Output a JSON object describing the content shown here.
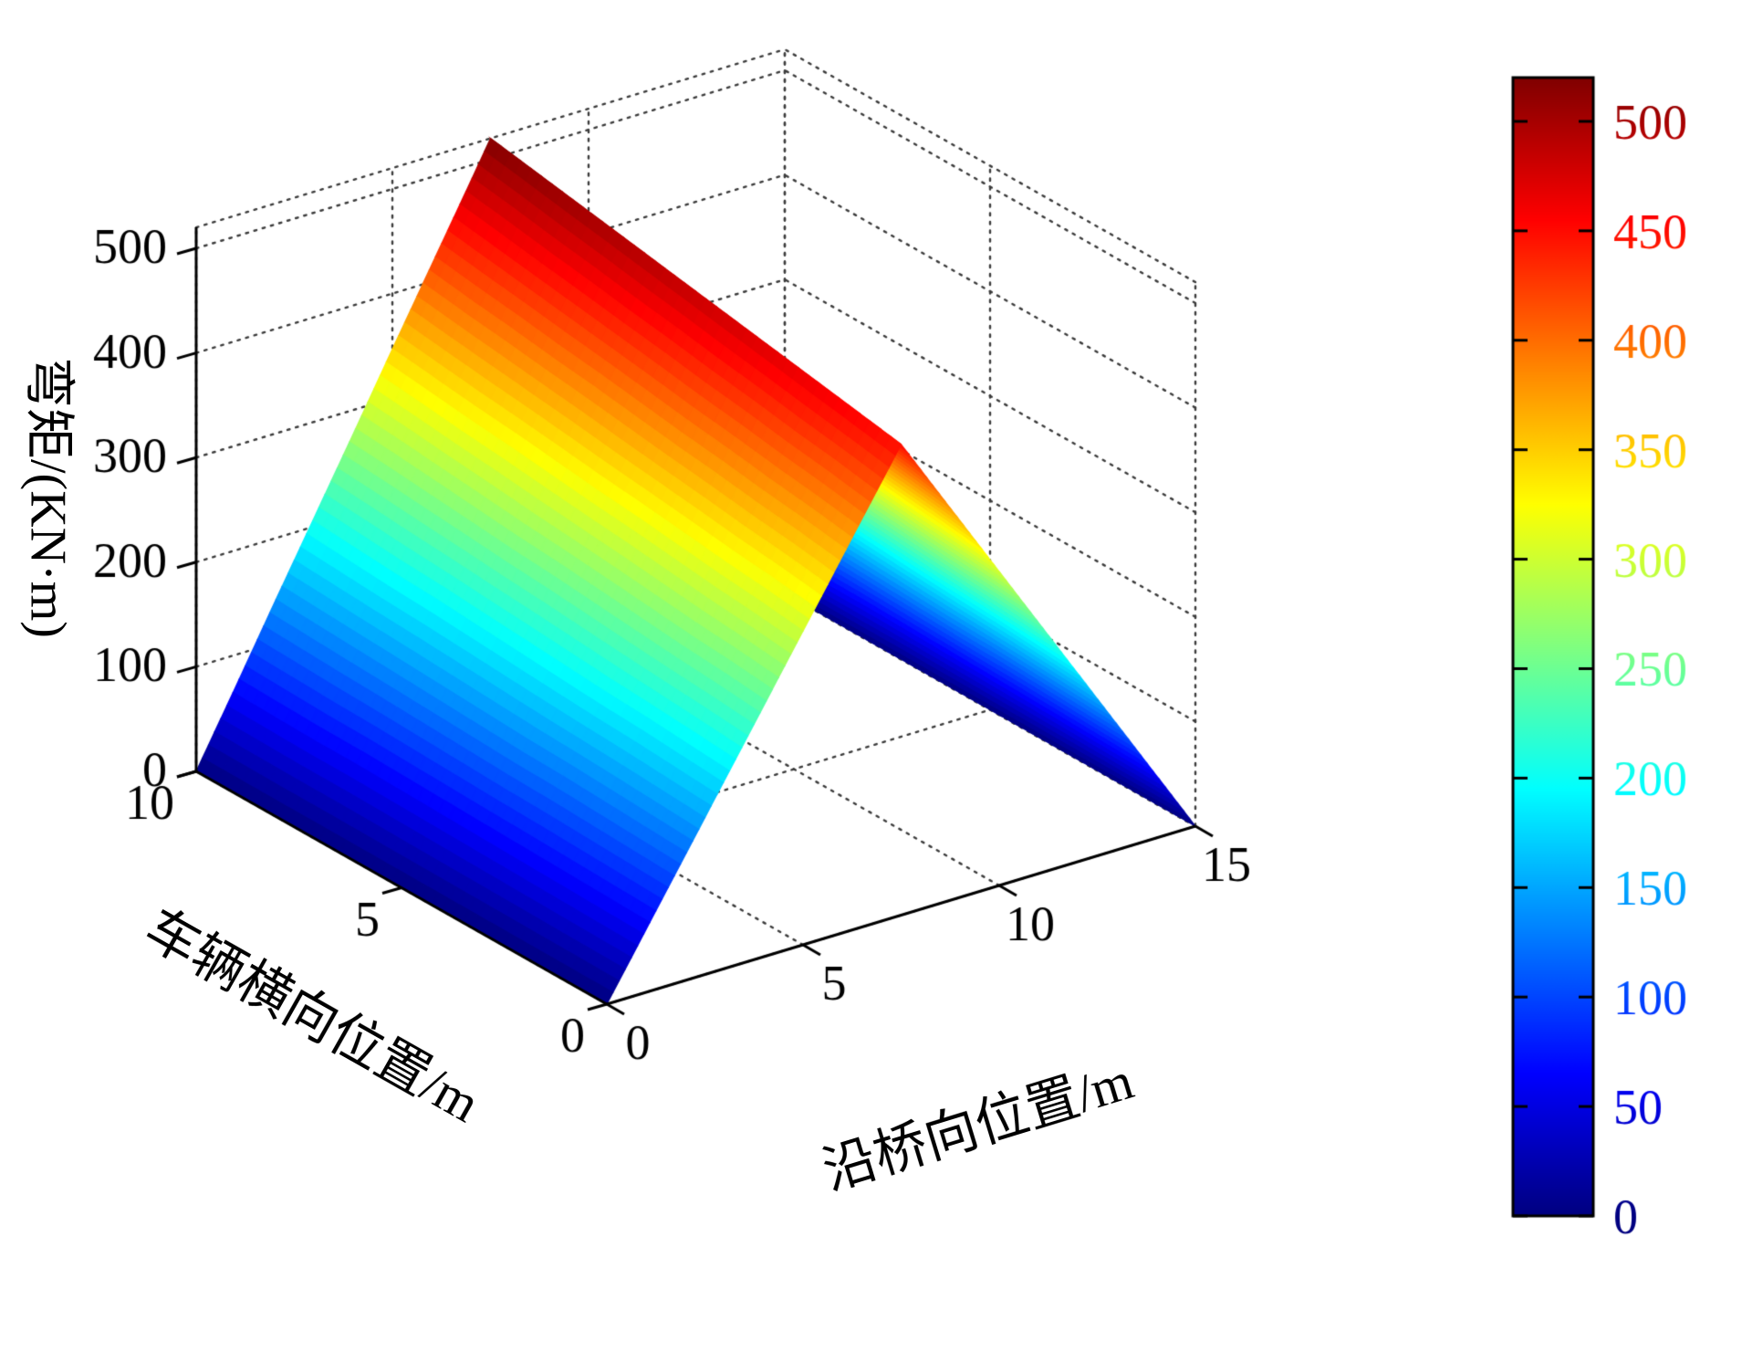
{
  "figure": {
    "background": "#ffffff",
    "grid_color": "#3c3c3c"
  },
  "chart_data": {
    "type": "surface",
    "title": "",
    "xlabel": "沿桥向位置/m",
    "ylabel": "车辆横向位置/m",
    "zlabel": "弯矩/(KN·m)",
    "xlim": [
      0,
      15
    ],
    "ylim": [
      0,
      10
    ],
    "zlim": [
      0,
      520
    ],
    "x_ticks": [
      0,
      5,
      10,
      15
    ],
    "y_ticks": [
      0,
      5,
      10
    ],
    "z_ticks": [
      0,
      100,
      200,
      300,
      400,
      500
    ],
    "grid": "dotted",
    "colormap": "jet",
    "colorbar": {
      "min": 0,
      "max": 520,
      "ticks": [
        0,
        50,
        100,
        150,
        200,
        250,
        300,
        350,
        400,
        450,
        500
      ],
      "position": "right"
    },
    "x": [
      0,
      1,
      2,
      3,
      4,
      5,
      6,
      7,
      7.5,
      8,
      9,
      10,
      11,
      12,
      13,
      14,
      15
    ],
    "y": [
      0,
      1,
      2,
      3,
      4,
      5,
      6,
      7,
      8,
      9,
      10
    ],
    "z": [
      [
        0,
        60,
        120,
        180,
        240,
        300,
        360,
        420,
        450,
        420,
        360,
        300,
        240,
        180,
        120,
        60,
        0
      ],
      [
        0,
        61,
        122,
        183,
        244,
        305,
        366,
        427,
        457,
        427,
        366,
        305,
        244,
        183,
        122,
        61,
        0
      ],
      [
        0,
        62,
        124,
        186,
        247,
        309,
        371,
        433,
        464,
        433,
        371,
        309,
        247,
        186,
        124,
        62,
        0
      ],
      [
        0,
        63,
        126,
        188,
        251,
        314,
        377,
        440,
        471,
        440,
        377,
        314,
        251,
        188,
        126,
        63,
        0
      ],
      [
        0,
        64,
        127,
        191,
        255,
        319,
        382,
        446,
        478,
        446,
        382,
        319,
        255,
        191,
        127,
        64,
        0
      ],
      [
        0,
        65,
        129,
        194,
        259,
        323,
        388,
        453,
        485,
        453,
        388,
        323,
        259,
        194,
        129,
        65,
        0
      ],
      [
        0,
        66,
        131,
        197,
        262,
        328,
        394,
        459,
        492,
        459,
        394,
        328,
        262,
        197,
        131,
        66,
        0
      ],
      [
        0,
        67,
        133,
        200,
        266,
        333,
        399,
        466,
        499,
        466,
        399,
        333,
        266,
        200,
        133,
        67,
        0
      ],
      [
        0,
        67,
        135,
        202,
        270,
        337,
        405,
        472,
        506,
        472,
        405,
        337,
        270,
        202,
        135,
        67,
        0
      ],
      [
        0,
        68,
        137,
        205,
        274,
        342,
        410,
        479,
        513,
        479,
        410,
        342,
        274,
        205,
        137,
        68,
        0
      ],
      [
        0,
        69,
        139,
        208,
        277,
        347,
        416,
        485,
        520,
        485,
        416,
        347,
        277,
        208,
        139,
        69,
        0
      ]
    ]
  }
}
